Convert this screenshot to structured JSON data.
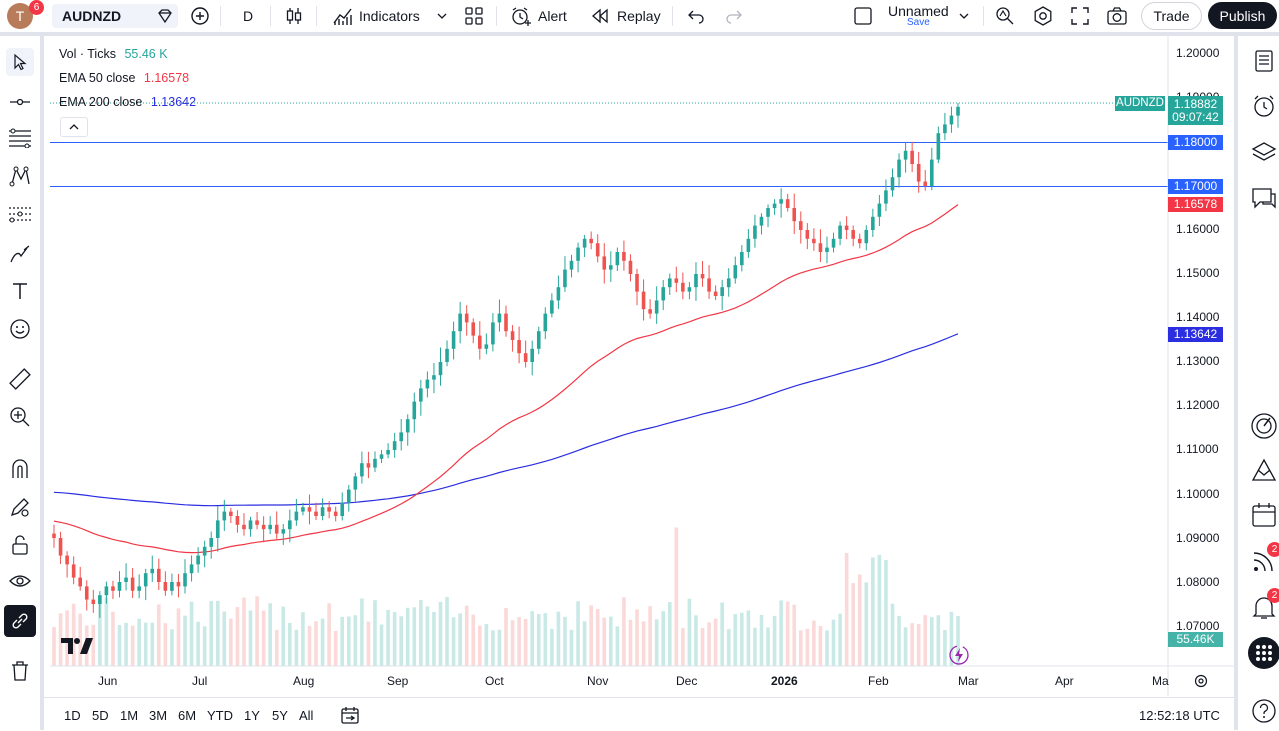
{
  "topbar": {
    "avatar_letter": "T",
    "avatar_badge": "6",
    "symbol": "AUDNZD",
    "interval": "D",
    "indicators_label": "Indicators",
    "alert_label": "Alert",
    "replay_label": "Replay",
    "layout_name": "Unnamed",
    "layout_save": "Save",
    "trade_label": "Trade",
    "publish_label": "Publish"
  },
  "legend": {
    "vol_label": "Vol · Ticks",
    "vol_value": "55.46 K",
    "ema50_label": "EMA 50 close",
    "ema50_value": "1.16578",
    "ema200_label": "EMA 200 close",
    "ema200_value": "1.13642"
  },
  "price_axis": {
    "ticks": [
      "1.20000",
      "1.19000",
      "1.16000",
      "1.15000",
      "1.14000",
      "1.13000",
      "1.12000",
      "1.11000",
      "1.10000",
      "1.09000",
      "1.08000",
      "1.07000"
    ],
    "symbol_tag": "AUDNZD",
    "last_price": "1.18882",
    "countdown": "09:07:42",
    "line1": "1.18000",
    "line2": "1.17000",
    "ema50_tag": "1.16578",
    "ema200_tag": "1.13642",
    "vol_tag": "55.46K"
  },
  "time_axis": {
    "labels": [
      "Jun",
      "Jul",
      "Aug",
      "Sep",
      "Oct",
      "Nov",
      "Dec",
      "2026",
      "Feb",
      "Mar",
      "Apr",
      "Ma"
    ]
  },
  "bottombar": {
    "ranges": [
      "1D",
      "5D",
      "1M",
      "3M",
      "6M",
      "YTD",
      "1Y",
      "5Y",
      "All"
    ],
    "clock": "12:52:18 UTC"
  },
  "rightbar": {
    "badge1": "2",
    "badge2": "2"
  },
  "colors": {
    "up": "#26a69a",
    "down": "#ef5350",
    "ema50": "#f23645",
    "ema200": "#2a2ee0",
    "hline": "#2962ff"
  },
  "chart_data": {
    "type": "candlestick",
    "symbol": "AUDNZD",
    "interval": "D",
    "ylim": [
      1.065,
      1.205
    ],
    "hlines": [
      1.18,
      1.17
    ],
    "last": 1.18882,
    "ema50_last": 1.16578,
    "ema200_last": 1.13642,
    "closes": [
      1.09,
      1.086,
      1.084,
      1.081,
      1.079,
      1.076,
      1.075,
      1.077,
      1.079,
      1.078,
      1.08,
      1.081,
      1.078,
      1.079,
      1.082,
      1.083,
      1.08,
      1.078,
      1.08,
      1.079,
      1.082,
      1.084,
      1.086,
      1.088,
      1.09,
      1.094,
      1.096,
      1.095,
      1.093,
      1.092,
      1.094,
      1.093,
      1.092,
      1.093,
      1.091,
      1.092,
      1.094,
      1.096,
      1.097,
      1.096,
      1.095,
      1.097,
      1.096,
      1.095,
      1.098,
      1.101,
      1.104,
      1.107,
      1.106,
      1.108,
      1.109,
      1.11,
      1.112,
      1.114,
      1.117,
      1.121,
      1.124,
      1.126,
      1.127,
      1.13,
      1.133,
      1.137,
      1.141,
      1.139,
      1.136,
      1.133,
      1.134,
      1.139,
      1.141,
      1.137,
      1.135,
      1.132,
      1.13,
      1.133,
      1.137,
      1.141,
      1.144,
      1.147,
      1.151,
      1.153,
      1.156,
      1.158,
      1.157,
      1.154,
      1.151,
      1.152,
      1.155,
      1.153,
      1.15,
      1.146,
      1.142,
      1.141,
      1.144,
      1.147,
      1.149,
      1.148,
      1.146,
      1.147,
      1.15,
      1.149,
      1.146,
      1.145,
      1.147,
      1.149,
      1.152,
      1.155,
      1.158,
      1.161,
      1.163,
      1.165,
      1.166,
      1.167,
      1.165,
      1.162,
      1.16,
      1.158,
      1.157,
      1.155,
      1.156,
      1.158,
      1.161,
      1.16,
      1.158,
      1.157,
      1.16,
      1.163,
      1.166,
      1.169,
      1.172,
      1.176,
      1.178,
      1.175,
      1.171,
      1.17,
      1.176,
      1.182,
      1.184,
      1.186,
      1.188
    ]
  }
}
